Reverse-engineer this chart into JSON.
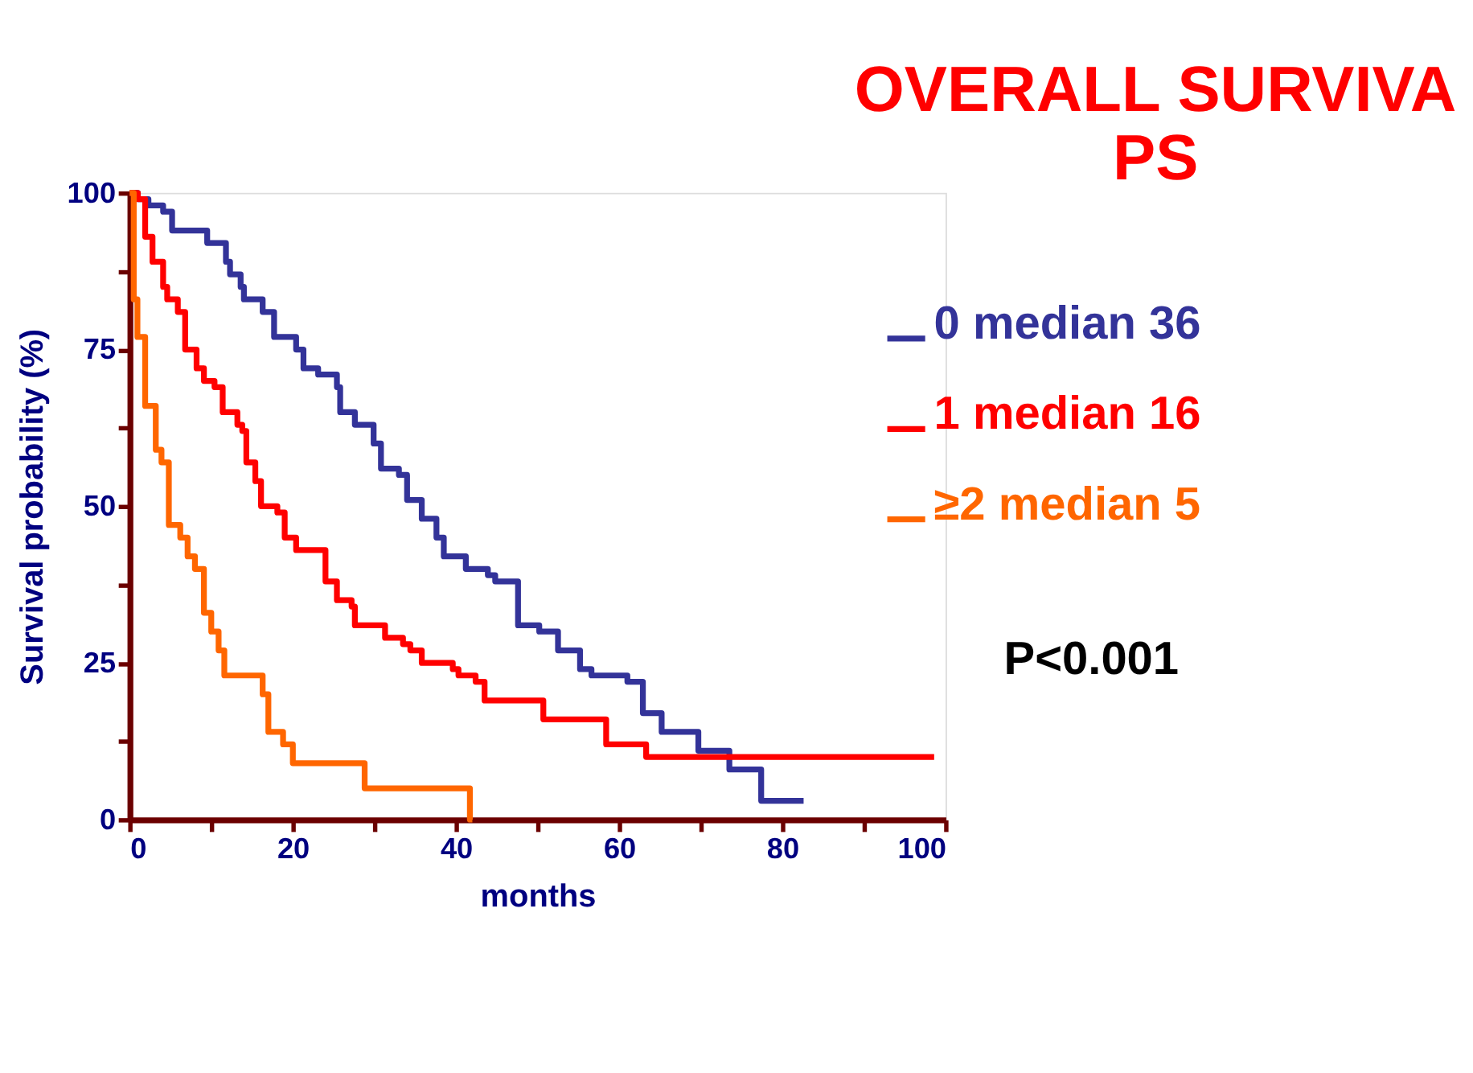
{
  "chart_data": {
    "type": "step",
    "title": "OVERALL SURVIVA",
    "subtitle": "PS",
    "xlabel": "months",
    "ylabel": "Survival probability (%)",
    "xlim": [
      0,
      100
    ],
    "ylim": [
      0,
      100
    ],
    "xticks": [
      0,
      {
        "value": 10,
        "label": null
      },
      20,
      {
        "value": 30,
        "label": null
      },
      40,
      {
        "value": 50,
        "label": null
      },
      60,
      {
        "value": 70,
        "label": null
      },
      80,
      {
        "value": 90,
        "label": null
      },
      100
    ],
    "yticks": [
      0,
      {
        "value": 12.5,
        "label": null
      },
      25,
      {
        "value": 37.5,
        "label": null
      },
      50,
      {
        "value": 62.5,
        "label": null
      },
      75,
      {
        "value": 87.5,
        "label": null
      },
      100
    ],
    "grid": false,
    "legend": "right",
    "line_style": "solid",
    "marker": "none",
    "annotations": [
      "P<0.001"
    ],
    "series": [
      {
        "name": "0  median 36",
        "color": "#333399",
        "x": [
          0,
          1,
          2.3,
          4.1,
          5.2,
          8,
          9.5,
          11.8,
          12.3,
          13.6,
          14,
          16.3,
          17.7,
          20.4,
          21.3,
          23.1,
          25.4,
          25.8,
          27.6,
          29.9,
          30.8,
          33,
          34,
          35.8,
          37.6,
          38.5,
          41.2,
          43.9,
          44.8,
          47.6,
          50.2,
          52.5,
          55.2,
          56.6,
          61,
          62.9,
          65.2,
          69.7,
          73.5,
          77.4,
          82.6
        ],
        "values": [
          100,
          99,
          98,
          97,
          94,
          94,
          92,
          89,
          87,
          85,
          83,
          81,
          77,
          75,
          72,
          71,
          69,
          65,
          63,
          60,
          56,
          55,
          51,
          48,
          45,
          42,
          40,
          39,
          38,
          31,
          30,
          27,
          24,
          23,
          22,
          17,
          14,
          11,
          8,
          3,
          3
        ]
      },
      {
        "name": "1 median 16",
        "color": "#ff0000",
        "x": [
          0,
          1,
          1.9,
          2.8,
          4.1,
          4.6,
          5.9,
          6.8,
          8.2,
          9.1,
          10.4,
          11.4,
          13.2,
          13.8,
          14.3,
          15.4,
          16.1,
          18.1,
          19,
          20.4,
          22.7,
          24,
          25.4,
          27.2,
          27.6,
          30.6,
          31.3,
          33.5,
          34.4,
          35.8,
          36.7,
          39.6,
          40.3,
          42.4,
          43.5,
          50.7,
          58.4,
          63.3,
          98.6
        ],
        "values": [
          100,
          99,
          93,
          89,
          85,
          83,
          81,
          75,
          72,
          70,
          69,
          65,
          63,
          62,
          57,
          54,
          50,
          49,
          45,
          43,
          43,
          38,
          35,
          34,
          31,
          31,
          29,
          28,
          27,
          25,
          25,
          24,
          23,
          22,
          19,
          16,
          12,
          10,
          10
        ]
      },
      {
        "name": "≥2 median 5",
        "color": "#ff6600",
        "x": [
          0,
          0.5,
          0.95,
          1.9,
          3.2,
          3.9,
          4.8,
          6.2,
          7.1,
          8,
          9.1,
          10,
          10.9,
          11.6,
          16.3,
          17,
          18.8,
          20,
          28.8,
          41.7,
          42
        ],
        "values": [
          100,
          83,
          77,
          66,
          59,
          57,
          47,
          45,
          42,
          40,
          33,
          30,
          27,
          23,
          20,
          14,
          12,
          9,
          5,
          0,
          0
        ]
      }
    ]
  }
}
